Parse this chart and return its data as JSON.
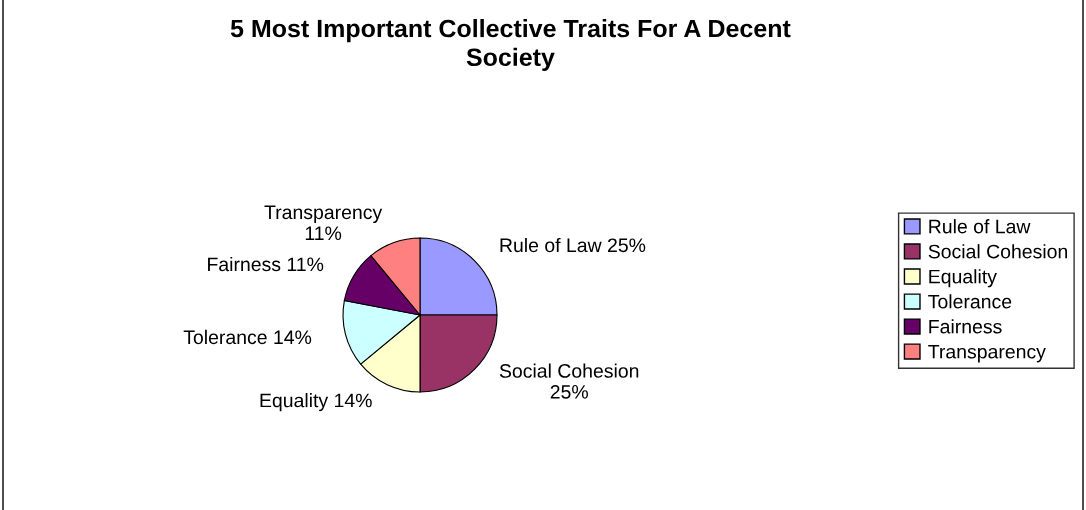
{
  "chart_data": {
    "type": "pie",
    "title": "5 Most Important Collective Traits For A Decent\nSociety",
    "categories": [
      "Rule of Law",
      "Social Cohesion",
      "Equality",
      "Tolerance",
      "Fairness",
      "Transparency"
    ],
    "values": [
      25,
      25,
      14,
      14,
      11,
      11
    ],
    "colors": [
      "#9999ff",
      "#993366",
      "#ffffcc",
      "#ccffff",
      "#660066",
      "#ff8080"
    ],
    "value_labels": [
      "Rule of Law 25%",
      "Social Cohesion\n25%",
      "Equality 14%",
      "Tolerance 14%",
      "Fairness 11%",
      "Transparency\n11%"
    ],
    "legend": "right"
  }
}
